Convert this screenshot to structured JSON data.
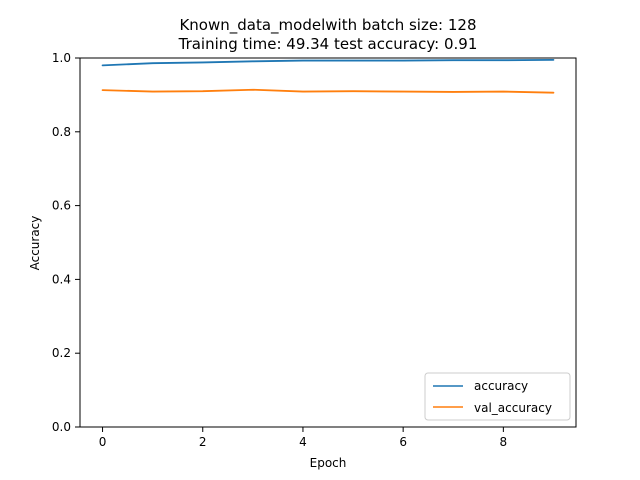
{
  "chart_data": {
    "type": "line",
    "title_lines": [
      "Known_data_modelwith batch size: 128",
      "Training time: 49.34 test accuracy: 0.91"
    ],
    "xlabel": "Epoch",
    "ylabel": "Accuracy",
    "x": [
      0,
      1,
      2,
      3,
      4,
      5,
      6,
      7,
      8,
      9
    ],
    "xlim": [
      -0.45,
      9.45
    ],
    "ylim": [
      0.0,
      1.0
    ],
    "xticks": [
      0,
      2,
      4,
      6,
      8
    ],
    "yticks": [
      0.0,
      0.2,
      0.4,
      0.6,
      0.8,
      1.0
    ],
    "xtick_labels": [
      "0",
      "2",
      "4",
      "6",
      "8"
    ],
    "ytick_labels": [
      "0.0",
      "0.2",
      "0.4",
      "0.6",
      "0.8",
      "1.0"
    ],
    "grid": false,
    "legend_position": "lower-right",
    "series": [
      {
        "name": "accuracy",
        "color": "#1f77b4",
        "values": [
          0.98,
          0.986,
          0.988,
          0.991,
          0.993,
          0.993,
          0.993,
          0.994,
          0.994,
          0.995
        ]
      },
      {
        "name": "val_accuracy",
        "color": "#ff7f0e",
        "values": [
          0.913,
          0.909,
          0.91,
          0.914,
          0.909,
          0.91,
          0.909,
          0.908,
          0.909,
          0.906
        ]
      }
    ]
  }
}
